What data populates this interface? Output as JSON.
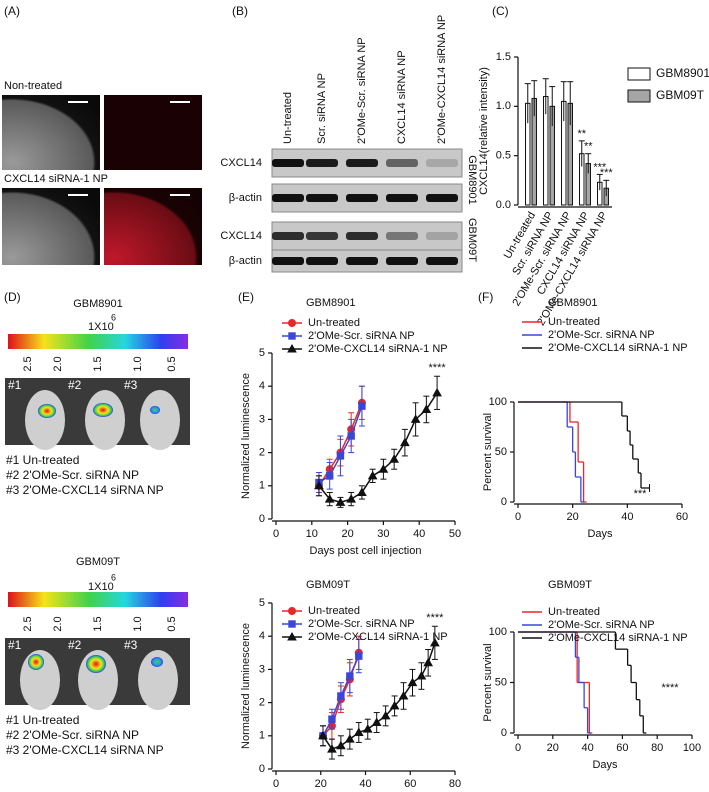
{
  "panels": {
    "a": {
      "label": "(A)",
      "rows": [
        "Non-treated",
        "CXCL14 siRNA-1 NP"
      ]
    },
    "b": {
      "label": "(B)",
      "columns": [
        "Un-treated",
        "Scr. siRNA NP",
        "2'OMe-Scr. siRNA NP",
        "CXCL14 siRNA NP",
        "2'OMe-CXCL14 siRNA NP"
      ],
      "rows": [
        "CXCL14",
        "β-actin",
        "CXCL14",
        "β-actin"
      ],
      "groups": [
        "GBM8901",
        "GBM09T"
      ]
    },
    "d": {
      "label": "(D)",
      "groups": [
        {
          "title": "GBM8901",
          "scale": "1X10",
          "exponent": "6",
          "ticks": [
            "2.5",
            "2.0",
            "1.5",
            "1.0",
            "0.5"
          ],
          "mice": [
            "#1",
            "#2",
            "#3"
          ],
          "legend": [
            "#1 Un-treated",
            "#2 2'OMe-Scr. siRNA NP",
            "#3 2'OMe-CXCL14 siRNA NP"
          ]
        },
        {
          "title": "GBM09T",
          "scale": "1X10",
          "exponent": "6",
          "ticks": [
            "2.5",
            "2.0",
            "1.5",
            "1.0",
            "0.5"
          ],
          "mice": [
            "#1",
            "#2",
            "#3"
          ],
          "legend": [
            "#1 Un-treated",
            "#2 2'OMe-Scr. siRNA NP",
            "#3 2'OMe-CXCL14 siRNA NP"
          ]
        }
      ]
    }
  },
  "chart_data": [
    {
      "type": "bar",
      "panel_label": "(C)",
      "ylabel": "CXCL14(relative intensity)",
      "categories": [
        "Un-treated",
        "Scr. siRNA NP",
        "2'OMe-Scr. siRNA NP",
        "CXCL14 siRNA NP",
        "2'OMe-CXCL14 siRNA NP"
      ],
      "ylim": [
        0,
        1.5
      ],
      "yticks": [
        {
          "value": 0,
          "label": "0.0"
        },
        0.5,
        {
          "value": 1,
          "label": "1.0"
        },
        1.5
      ],
      "series": [
        {
          "name": "GBM8901",
          "color": "#ffffff",
          "values": [
            1.03,
            1.1,
            1.05,
            0.52,
            0.23
          ],
          "errors": [
            0.2,
            0.18,
            0.2,
            0.13,
            0.08
          ],
          "significance": [
            null,
            null,
            null,
            "**",
            "***"
          ]
        },
        {
          "name": "GBM09T",
          "color": "#a6a6a6",
          "values": [
            1.08,
            1.0,
            1.03,
            0.42,
            0.17
          ],
          "errors": [
            0.18,
            0.2,
            0.22,
            0.1,
            0.08
          ],
          "significance": [
            null,
            null,
            null,
            "**",
            "***"
          ]
        }
      ]
    },
    {
      "type": "line",
      "panel_label": "(E)",
      "title": "GBM8901",
      "xlabel": "Days post cell injection",
      "ylabel": "Normalized luminescence",
      "xlim": [
        0,
        50
      ],
      "xticks": [
        0,
        10,
        20,
        30,
        40,
        50
      ],
      "ylim": [
        0,
        5
      ],
      "yticks": [
        0,
        1,
        2,
        3,
        4,
        5
      ],
      "annotation": "****",
      "series": [
        {
          "name": "Un-treated",
          "color": "#e8262b",
          "marker": "circle",
          "x": [
            12,
            15,
            18,
            21,
            24
          ],
          "values": [
            1.0,
            1.5,
            2.0,
            2.7,
            3.5
          ],
          "errors": [
            0.3,
            0.3,
            0.4,
            0.5,
            0.5
          ]
        },
        {
          "name": "2'OMe-Scr. siRNA NP",
          "color": "#3b46d6",
          "marker": "square",
          "x": [
            12,
            15,
            18,
            21,
            24
          ],
          "values": [
            1.1,
            1.3,
            1.9,
            2.5,
            3.4
          ],
          "errors": [
            0.3,
            0.4,
            0.6,
            0.5,
            0.6
          ]
        },
        {
          "name": "2'OMe-CXCL14 siRNA-1 NP",
          "color": "#111111",
          "marker": "triangle",
          "x": [
            12,
            15,
            18,
            21,
            24,
            27,
            30,
            33,
            36,
            39,
            42,
            45
          ],
          "values": [
            1.0,
            0.6,
            0.5,
            0.6,
            0.8,
            1.3,
            1.5,
            1.8,
            2.3,
            3.0,
            3.3,
            3.8
          ],
          "errors": [
            0.3,
            0.2,
            0.15,
            0.2,
            0.2,
            0.2,
            0.3,
            0.3,
            0.4,
            0.5,
            0.4,
            0.5
          ]
        }
      ]
    },
    {
      "type": "line",
      "title": "GBM09T",
      "xlabel": "Days post cell injection",
      "ylabel": "Normalized luminescence",
      "xlim": [
        0,
        80
      ],
      "xticks": [
        0,
        20,
        40,
        60,
        80
      ],
      "ylim": [
        0,
        5
      ],
      "yticks": [
        0,
        1,
        2,
        3,
        4,
        5
      ],
      "annotation": "****",
      "series": [
        {
          "name": "Un-treated",
          "color": "#e8262b",
          "marker": "circle",
          "x": [
            21,
            25,
            29,
            33,
            37
          ],
          "values": [
            1.0,
            1.3,
            2.1,
            2.7,
            3.5
          ],
          "errors": [
            0.3,
            0.4,
            0.4,
            0.5,
            0.5
          ]
        },
        {
          "name": "2'OMe-Scr. siRNA NP",
          "color": "#3b46d6",
          "marker": "square",
          "x": [
            21,
            25,
            29,
            33,
            37
          ],
          "values": [
            1.0,
            1.5,
            2.2,
            2.8,
            3.4
          ],
          "errors": [
            0.3,
            0.3,
            0.4,
            0.5,
            0.5
          ]
        },
        {
          "name": "2'OMe-CXCL14 siRNA-1 NP",
          "color": "#111111",
          "marker": "triangle",
          "x": [
            21,
            25,
            29,
            33,
            37,
            41,
            45,
            49,
            53,
            57,
            61,
            65,
            68,
            71
          ],
          "values": [
            1.0,
            0.6,
            0.7,
            0.9,
            1.1,
            1.2,
            1.4,
            1.6,
            1.9,
            2.2,
            2.6,
            2.8,
            3.2,
            3.8
          ],
          "errors": [
            0.3,
            0.3,
            0.3,
            0.3,
            0.3,
            0.3,
            0.3,
            0.3,
            0.3,
            0.4,
            0.4,
            0.4,
            0.4,
            0.5
          ]
        }
      ]
    },
    {
      "type": "step",
      "panel_label": "(F)",
      "title": "GBM8901",
      "xlabel": "Days",
      "ylabel": "Percent survival",
      "xlim": [
        0,
        60
      ],
      "xticks": [
        0,
        20,
        40,
        60
      ],
      "ylim": [
        0,
        100
      ],
      "yticks": [
        0,
        50,
        100
      ],
      "annotation": "***",
      "series": [
        {
          "name": "Un-treated",
          "color": "#e8262b",
          "x": [
            0,
            19,
            22,
            24
          ],
          "values": [
            100,
            80,
            40,
            0
          ]
        },
        {
          "name": "2'OMe-Scr. siRNA NP",
          "color": "#3b46d6",
          "x": [
            0,
            18,
            20,
            21,
            23
          ],
          "values": [
            100,
            75,
            50,
            25,
            0
          ]
        },
        {
          "name": "2'OMe-CXCL14 siRNA-1 NP",
          "color": "#111111",
          "x": [
            0,
            38,
            40,
            41,
            42,
            44,
            45,
            47
          ],
          "values": [
            100,
            86,
            71,
            57,
            43,
            29,
            14,
            14
          ]
        }
      ]
    },
    {
      "type": "step",
      "title": "GBM09T",
      "xlabel": "Days",
      "ylabel": "Percent survival",
      "xlim": [
        0,
        100
      ],
      "xticks": [
        0,
        20,
        40,
        60,
        80,
        100
      ],
      "ylim": [
        0,
        100
      ],
      "yticks": [
        0,
        50,
        100
      ],
      "annotation": "****",
      "series": [
        {
          "name": "Un-treated",
          "color": "#e8262b",
          "x": [
            0,
            34,
            41
          ],
          "values": [
            100,
            50,
            0
          ]
        },
        {
          "name": "2'OMe-Scr. siRNA NP",
          "color": "#3b46d6",
          "x": [
            0,
            33,
            35,
            38,
            40
          ],
          "values": [
            100,
            75,
            50,
            25,
            0
          ]
        },
        {
          "name": "2'OMe-CXCL14 siRNA-1 NP",
          "color": "#111111",
          "x": [
            0,
            56,
            63,
            65,
            68,
            70,
            72
          ],
          "values": [
            100,
            83,
            67,
            50,
            33,
            17,
            0
          ]
        }
      ]
    }
  ]
}
